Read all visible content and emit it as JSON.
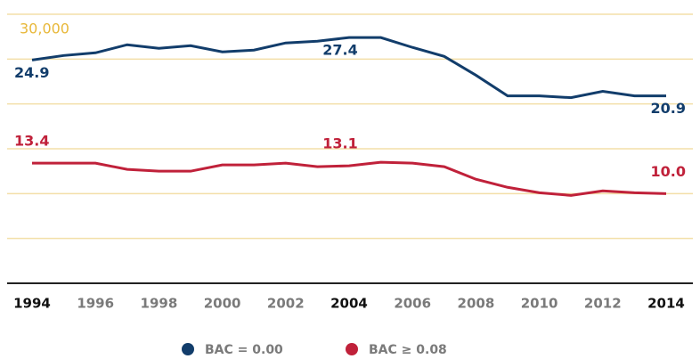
{
  "chart_data": {
    "type": "line",
    "x": [
      1994,
      1995,
      1996,
      1997,
      1998,
      1999,
      2000,
      2001,
      2002,
      2003,
      2004,
      2005,
      2006,
      2007,
      2008,
      2009,
      2010,
      2011,
      2012,
      2013,
      2014
    ],
    "series": [
      {
        "name": "BAC = 0.00",
        "color": "#123d6b",
        "values": [
          24900,
          25400,
          25700,
          26600,
          26200,
          26500,
          25800,
          26000,
          26800,
          27000,
          27400,
          27400,
          26300,
          25300,
          23200,
          20900,
          20900,
          20700,
          21400,
          20900,
          20900
        ],
        "value_labels": [
          "24.9",
          null,
          null,
          null,
          null,
          null,
          null,
          null,
          null,
          null,
          "27.4",
          null,
          null,
          null,
          null,
          null,
          null,
          null,
          null,
          null,
          "20.9"
        ]
      },
      {
        "name": "BAC ≥ 0.08",
        "color": "#c0213a",
        "values": [
          13400,
          13400,
          13400,
          12700,
          12500,
          12500,
          13200,
          13200,
          13400,
          13000,
          13100,
          13500,
          13400,
          13000,
          11600,
          10700,
          10100,
          9800,
          10300,
          10100,
          10000
        ],
        "value_labels": [
          "13.4",
          null,
          null,
          null,
          null,
          null,
          null,
          null,
          null,
          null,
          "13.1",
          null,
          null,
          null,
          null,
          null,
          null,
          null,
          null,
          null,
          "10.0"
        ]
      }
    ],
    "xlim": [
      1994,
      2014
    ],
    "xticks": [
      1994,
      1996,
      1998,
      2000,
      2002,
      2004,
      2006,
      2008,
      2010,
      2012,
      2014
    ],
    "highlight_x": [
      1994,
      2004,
      2014
    ],
    "ylim": [
      0,
      30000
    ],
    "yticks": [
      {
        "value": 30000,
        "label": "30,000"
      }
    ],
    "ygrid": [
      5000,
      10000,
      15000,
      20000,
      25000
    ],
    "grid_color": "#f3dfa8",
    "tick_color": "#e8b83a"
  }
}
